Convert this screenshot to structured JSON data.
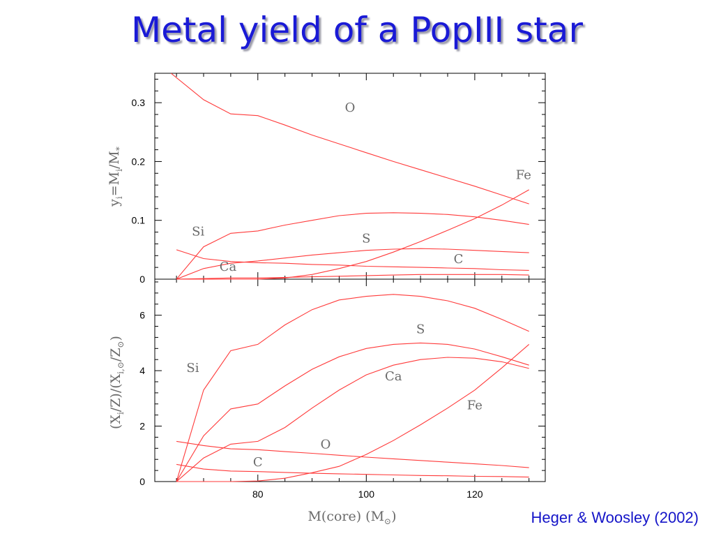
{
  "title": "Metal yield of a PopIII star",
  "caption": "Heger & Woosley (2002)",
  "colors": {
    "title": "#1a1ad6",
    "caption": "#1414c8",
    "lines": "#ff3a3a"
  },
  "chart_data": [
    {
      "type": "line",
      "ylabel": "y_i=M_i/M_*",
      "xlim": [
        61,
        133
      ],
      "ylim": [
        0,
        0.35
      ],
      "xticks": [
        80,
        100,
        120
      ],
      "yticks": [
        0,
        0.1,
        0.2,
        0.3
      ],
      "ytick_labels": [
        "0",
        "0.1",
        "0.2",
        "0.3"
      ],
      "series": [
        {
          "name": "O",
          "x": [
            64,
            70,
            75,
            80,
            85,
            90,
            95,
            100,
            105,
            110,
            115,
            120,
            125,
            130
          ],
          "values": [
            0.35,
            0.305,
            0.281,
            0.278,
            0.262,
            0.245,
            0.23,
            0.215,
            0.2,
            0.186,
            0.172,
            0.158,
            0.143,
            0.128
          ]
        },
        {
          "name": "Si",
          "x": [
            65,
            70,
            75,
            80,
            85,
            90,
            95,
            100,
            105,
            110,
            115,
            120,
            125,
            130
          ],
          "values": [
            0,
            0.055,
            0.078,
            0.082,
            0.092,
            0.1,
            0.108,
            0.112,
            0.113,
            0.112,
            0.11,
            0.106,
            0.1,
            0.093
          ]
        },
        {
          "name": "S",
          "x": [
            65,
            70,
            75,
            80,
            85,
            90,
            95,
            100,
            105,
            110,
            115,
            120,
            125,
            130
          ],
          "values": [
            0,
            0.018,
            0.027,
            0.031,
            0.036,
            0.041,
            0.045,
            0.049,
            0.051,
            0.052,
            0.051,
            0.049,
            0.047,
            0.045
          ]
        },
        {
          "name": "C",
          "x": [
            65,
            70,
            75,
            80,
            85,
            90,
            95,
            100,
            105,
            110,
            115,
            120,
            125,
            130
          ],
          "values": [
            0.05,
            0.035,
            0.03,
            0.028,
            0.027,
            0.025,
            0.024,
            0.022,
            0.021,
            0.02,
            0.019,
            0.018,
            0.016,
            0.015
          ]
        },
        {
          "name": "Ca",
          "x": [
            65,
            70,
            75,
            80,
            85,
            90,
            95,
            100,
            105,
            110,
            115,
            120,
            125,
            130
          ],
          "values": [
            0,
            0.001,
            0.002,
            0.002,
            0.003,
            0.004,
            0.005,
            0.006,
            0.007,
            0.008,
            0.008,
            0.008,
            0.008,
            0.007
          ]
        },
        {
          "name": "Fe",
          "x": [
            65,
            70,
            75,
            80,
            85,
            90,
            95,
            100,
            105,
            110,
            115,
            120,
            125,
            130
          ],
          "values": [
            0,
            0,
            0,
            0,
            0.002,
            0.008,
            0.018,
            0.03,
            0.046,
            0.064,
            0.083,
            0.103,
            0.126,
            0.152
          ]
        }
      ],
      "labels": [
        {
          "text": "O",
          "x": 97,
          "y": 0.285
        },
        {
          "text": "Fe",
          "x": 129,
          "y": 0.17
        },
        {
          "text": "Si",
          "x": 69,
          "y": 0.074
        },
        {
          "text": "S",
          "x": 100,
          "y": 0.062
        },
        {
          "text": "C",
          "x": 117,
          "y": 0.027
        },
        {
          "text": "Ca",
          "x": 74.5,
          "y": 0.014
        }
      ]
    },
    {
      "type": "line",
      "xlabel": "M(core) (M_⊙)",
      "ylabel": "(X_i/Z)/(X_i,⊙/Z_⊙)",
      "xlim": [
        61,
        133
      ],
      "ylim": [
        0,
        7.3
      ],
      "xticks": [
        80,
        100,
        120
      ],
      "xtick_labels": [
        "80",
        "100",
        "120"
      ],
      "yticks": [
        0,
        2,
        4,
        6
      ],
      "ytick_labels": [
        "0",
        "2",
        "4",
        "6"
      ],
      "series": [
        {
          "name": "O",
          "x": [
            65,
            70,
            75,
            80,
            85,
            90,
            95,
            100,
            105,
            110,
            115,
            120,
            125,
            130
          ],
          "values": [
            1.45,
            1.3,
            1.18,
            1.15,
            1.08,
            1.02,
            0.95,
            0.88,
            0.82,
            0.76,
            0.7,
            0.64,
            0.58,
            0.5
          ]
        },
        {
          "name": "C",
          "x": [
            65,
            70,
            75,
            80,
            85,
            90,
            95,
            100,
            105,
            110,
            115,
            120,
            125,
            130
          ],
          "values": [
            0.62,
            0.45,
            0.38,
            0.36,
            0.33,
            0.3,
            0.28,
            0.26,
            0.24,
            0.22,
            0.21,
            0.19,
            0.18,
            0.16
          ]
        },
        {
          "name": "Si",
          "x": [
            65,
            70,
            75,
            80,
            85,
            90,
            95,
            100,
            105,
            110,
            115,
            120,
            125,
            130
          ],
          "values": [
            0,
            3.3,
            4.72,
            4.95,
            5.65,
            6.2,
            6.55,
            6.68,
            6.75,
            6.68,
            6.52,
            6.25,
            5.85,
            5.42
          ]
        },
        {
          "name": "S",
          "x": [
            65,
            70,
            75,
            80,
            85,
            90,
            95,
            100,
            105,
            110,
            115,
            120,
            125,
            130
          ],
          "values": [
            0,
            1.65,
            2.62,
            2.8,
            3.45,
            4.05,
            4.5,
            4.8,
            4.95,
            5.0,
            4.95,
            4.78,
            4.5,
            4.2
          ]
        },
        {
          "name": "Ca",
          "x": [
            65,
            70,
            75,
            80,
            85,
            90,
            95,
            100,
            105,
            110,
            115,
            120,
            125,
            130
          ],
          "values": [
            0,
            0.85,
            1.35,
            1.45,
            1.95,
            2.65,
            3.3,
            3.85,
            4.2,
            4.4,
            4.48,
            4.45,
            4.32,
            4.08
          ]
        },
        {
          "name": "Fe",
          "x": [
            65,
            70,
            75,
            80,
            85,
            90,
            95,
            100,
            105,
            110,
            115,
            120,
            125,
            130
          ],
          "values": [
            0,
            0,
            0,
            0.02,
            0.12,
            0.32,
            0.55,
            0.98,
            1.48,
            2.05,
            2.65,
            3.3,
            4.1,
            4.95
          ]
        }
      ],
      "labels": [
        {
          "text": "S",
          "x": 110,
          "y": 5.35
        },
        {
          "text": "Si",
          "x": 68,
          "y": 3.95
        },
        {
          "text": "Ca",
          "x": 105,
          "y": 3.65
        },
        {
          "text": "Fe",
          "x": 120,
          "y": 2.6
        },
        {
          "text": "O",
          "x": 92.5,
          "y": 1.2
        },
        {
          "text": "C",
          "x": 80,
          "y": 0.55
        }
      ]
    }
  ]
}
